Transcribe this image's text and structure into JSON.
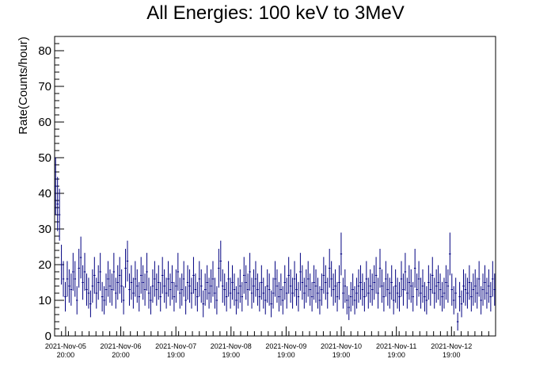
{
  "chart_data": {
    "type": "scatter",
    "title": "All Energies:  100 keV to 3MeV",
    "xlabel": "",
    "ylabel": "Rate(Counts/hour)",
    "ylim": [
      0,
      84
    ],
    "yticks": [
      0,
      10,
      20,
      30,
      40,
      50,
      60,
      70,
      80
    ],
    "xlim": [
      0,
      8.0
    ],
    "xtick_positions": [
      0.2,
      1.2,
      2.2,
      3.2,
      4.2,
      5.2,
      6.2,
      7.2
    ],
    "xtick_labels": [
      [
        "2021-Nov-05",
        "20:00"
      ],
      [
        "2021-Nov-06",
        "20:00"
      ],
      [
        "2021-Nov-07",
        "19:00"
      ],
      [
        "2021-Nov-08",
        "19:00"
      ],
      [
        "2021-Nov-09",
        "19:00"
      ],
      [
        "2021-Nov-10",
        "19:00"
      ],
      [
        "2021-Nov-11",
        "19:00"
      ],
      [
        "2021-Nov-12",
        "19:00"
      ]
    ],
    "grid": false,
    "marker_color": "#000080",
    "series": [
      {
        "values": [
          42,
          37,
          34,
          20,
          16,
          11,
          16,
          14,
          13,
          18,
          16,
          10,
          19,
          22,
          15,
          18,
          13,
          12,
          9,
          14,
          17,
          12,
          15,
          18,
          11,
          10,
          13,
          16,
          14,
          13,
          18,
          12,
          15,
          17,
          14,
          10,
          19,
          21,
          13,
          15,
          12,
          16,
          14,
          11,
          17,
          15,
          13,
          18,
          12,
          10,
          14,
          16,
          13,
          15,
          11,
          17,
          14,
          12,
          16,
          13,
          15,
          11,
          14,
          18,
          12,
          13,
          16,
          10,
          15,
          14,
          12,
          17,
          13,
          11,
          16,
          14,
          9,
          13,
          15,
          12,
          14,
          16,
          12,
          10,
          19,
          21,
          14,
          13,
          11,
          16,
          12,
          15,
          13,
          10,
          12,
          14,
          11,
          17,
          15,
          13,
          18,
          12,
          14,
          16,
          13,
          11,
          15,
          12,
          10,
          14,
          13,
          9,
          12,
          16,
          14,
          11,
          13,
          10,
          15,
          12,
          17,
          14,
          12,
          16,
          13,
          11,
          18,
          15,
          12,
          14,
          16,
          13,
          11,
          15,
          14,
          12,
          10,
          13,
          17,
          15,
          12,
          19,
          16,
          13,
          14,
          11,
          15,
          23,
          12,
          14,
          10,
          8,
          11,
          13,
          10,
          12,
          14,
          15,
          13,
          11,
          16,
          12,
          14,
          13,
          15,
          17,
          12,
          19,
          14,
          11,
          16,
          13,
          12,
          15,
          10,
          14,
          12,
          11,
          16,
          13,
          18,
          12,
          15,
          14,
          11,
          19,
          13,
          16,
          12,
          14,
          11,
          10,
          15,
          13,
          17,
          12,
          14,
          15,
          13,
          11,
          12,
          15,
          14,
          23,
          13,
          10,
          12,
          4,
          11,
          9,
          14,
          13,
          12,
          15,
          11,
          13,
          14,
          12,
          16,
          10,
          13,
          15,
          12,
          14,
          11,
          16,
          13
        ]
      }
    ]
  }
}
